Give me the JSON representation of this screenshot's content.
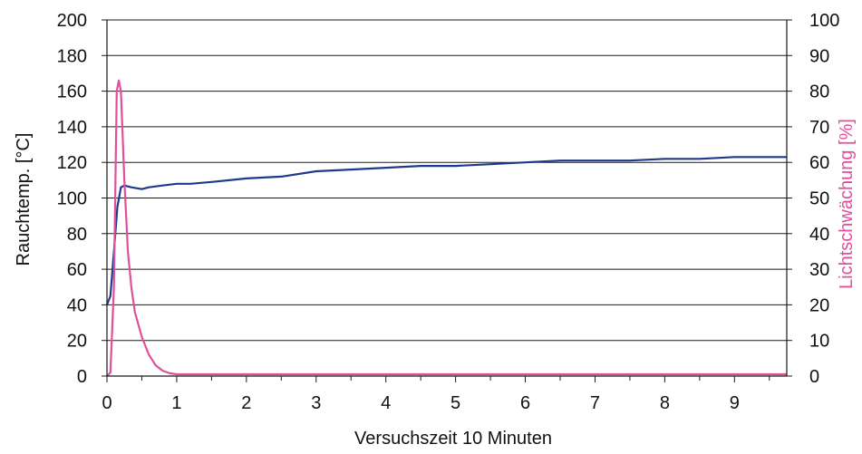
{
  "chart_data": {
    "type": "line",
    "xlabel": "Versuchszeit 10 Minuten",
    "ylabel_left": "Rauchtemp. [°C]",
    "ylabel_right": "Lichtschwächung [%]",
    "xlim": [
      0,
      9.75
    ],
    "ylim_left": [
      0,
      200
    ],
    "ylim_right": [
      0,
      100
    ],
    "x_ticks": [
      "0",
      "1",
      "2",
      "3",
      "4",
      "5",
      "6",
      "7",
      "8",
      "9"
    ],
    "y_left_ticks": [
      "0",
      "20",
      "40",
      "60",
      "80",
      "100",
      "120",
      "140",
      "160",
      "180",
      "200"
    ],
    "y_right_ticks": [
      "0",
      "10",
      "20",
      "30",
      "40",
      "50",
      "60",
      "70",
      "80",
      "90",
      "100"
    ],
    "grid": true,
    "legend": "none",
    "colors": {
      "temperature": "#1f3a8a",
      "light": "#e0509a"
    },
    "series": [
      {
        "axis": "left",
        "color_key": "temperature",
        "points": [
          [
            0,
            40
          ],
          [
            0.05,
            45
          ],
          [
            0.1,
            70
          ],
          [
            0.15,
            95
          ],
          [
            0.2,
            106
          ],
          [
            0.25,
            107
          ],
          [
            0.35,
            106
          ],
          [
            0.5,
            105
          ],
          [
            0.6,
            106
          ],
          [
            0.8,
            107
          ],
          [
            1.0,
            108
          ],
          [
            1.2,
            108
          ],
          [
            1.5,
            109
          ],
          [
            2.0,
            111
          ],
          [
            2.5,
            112
          ],
          [
            3.0,
            115
          ],
          [
            3.5,
            116
          ],
          [
            4.0,
            117
          ],
          [
            4.5,
            118
          ],
          [
            5.0,
            118
          ],
          [
            5.5,
            119
          ],
          [
            6.0,
            120
          ],
          [
            6.5,
            121
          ],
          [
            7.0,
            121
          ],
          [
            7.5,
            121
          ],
          [
            8.0,
            122
          ],
          [
            8.5,
            122
          ],
          [
            9.0,
            123
          ],
          [
            9.5,
            123
          ],
          [
            9.75,
            123
          ]
        ]
      },
      {
        "axis": "right",
        "color_key": "light",
        "points": [
          [
            0,
            0
          ],
          [
            0.05,
            1
          ],
          [
            0.1,
            25
          ],
          [
            0.14,
            80
          ],
          [
            0.17,
            83
          ],
          [
            0.2,
            80
          ],
          [
            0.25,
            55
          ],
          [
            0.3,
            35
          ],
          [
            0.35,
            25
          ],
          [
            0.4,
            18
          ],
          [
            0.5,
            11
          ],
          [
            0.6,
            6
          ],
          [
            0.7,
            3
          ],
          [
            0.8,
            1.5
          ],
          [
            0.9,
            0.8
          ],
          [
            1.0,
            0.5
          ],
          [
            2.0,
            0.5
          ],
          [
            3.0,
            0.5
          ],
          [
            4.0,
            0.5
          ],
          [
            5.0,
            0.5
          ],
          [
            6.0,
            0.5
          ],
          [
            7.0,
            0.5
          ],
          [
            8.0,
            0.5
          ],
          [
            9.0,
            0.5
          ],
          [
            9.75,
            0.5
          ]
        ]
      }
    ]
  }
}
